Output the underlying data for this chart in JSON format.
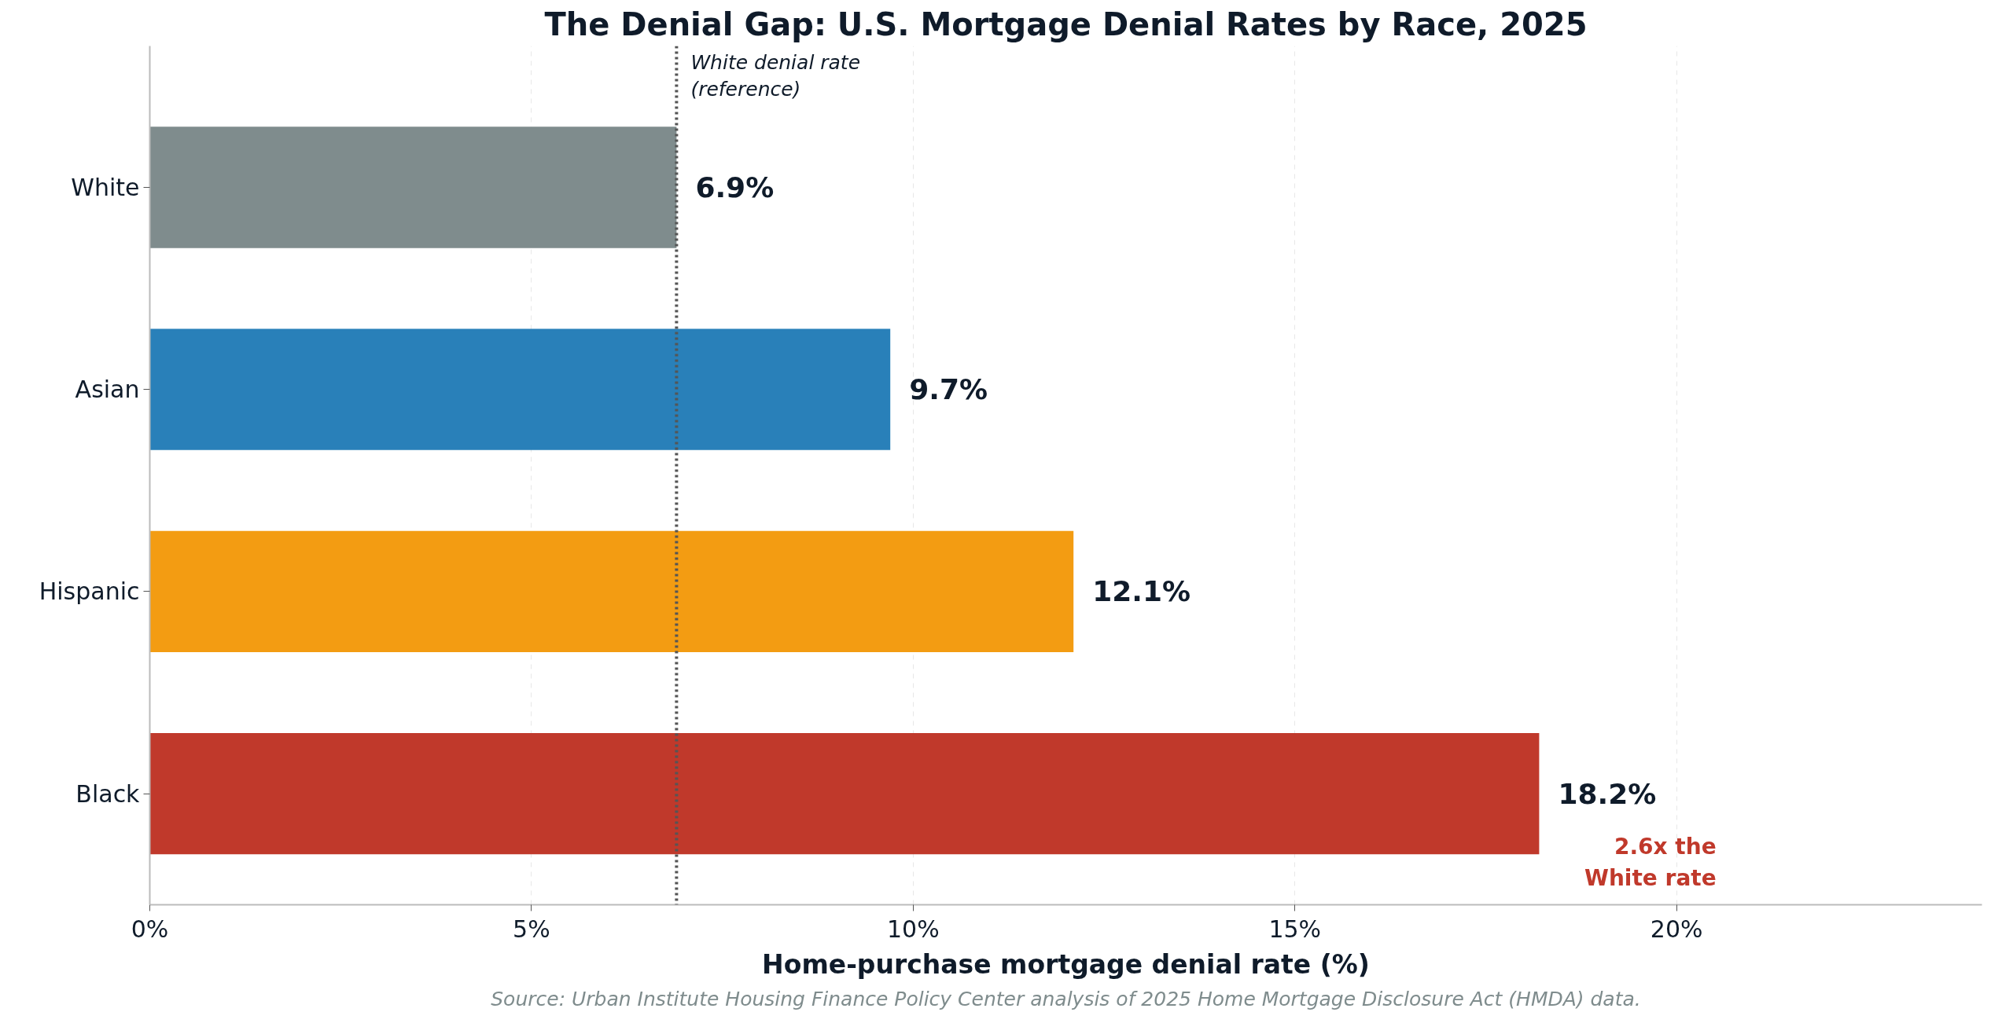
{
  "chart_data": {
    "type": "bar",
    "orientation": "horizontal",
    "title": "The Denial Gap: U.S. Mortgage Denial Rates by Race, 2025",
    "xlabel": "Home-purchase mortgage denial rate (%)",
    "categories": [
      "White",
      "Asian",
      "Hispanic",
      "Black"
    ],
    "values": [
      6.9,
      9.7,
      12.1,
      18.2
    ],
    "colors": [
      "#7f8c8d",
      "#2980b9",
      "#f39c12",
      "#c0392b"
    ],
    "value_labels": [
      "6.9%",
      "9.7%",
      "12.1%",
      "18.2%"
    ],
    "xlim": [
      0,
      24
    ],
    "xticks": [
      {
        "value": 0,
        "label": "0%"
      },
      {
        "value": 5,
        "label": "5%"
      },
      {
        "value": 10,
        "label": "10%"
      },
      {
        "value": 15,
        "label": "15%"
      },
      {
        "value": 20,
        "label": "20%"
      }
    ],
    "grid": "x",
    "ref_lines": [
      {
        "axis": "x",
        "value": 6.9,
        "label": "White denial rate\n(reference)",
        "color": "#555555",
        "line_style": "dotted"
      }
    ],
    "annotations": [
      "2.6x the\nWhite rate",
      "Source: Urban Institute Housing Finance Policy Center analysis of 2025 Home Mortgage Disclosure Act (HMDA) data."
    ]
  }
}
